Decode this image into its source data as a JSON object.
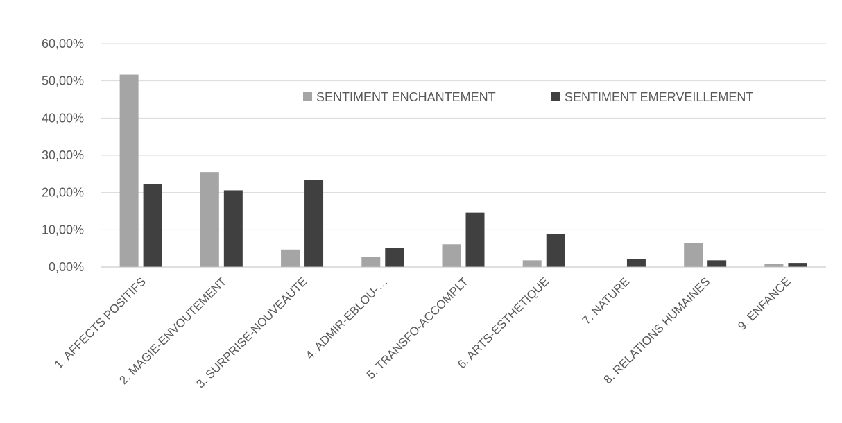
{
  "chart_data": {
    "type": "bar",
    "title": "",
    "xlabel": "",
    "ylabel": "",
    "categories": [
      "1. AFFECTS POSITIFS",
      "2. MAGIE-ENVOUTEMENT",
      "3. SURPRISE-NOUVEAUTE",
      "4. ADMIR-EBLOU-…",
      "5. TRANSFO-ACCOMPLT",
      "6. ARTS-ESTHETIQUE",
      "7. NATURE",
      "8. RELATIONS HUMAINES",
      "9. ENFANCE"
    ],
    "series": [
      {
        "name": "SENTIMENT ENCHANTEMENT",
        "color": "#a5a5a5",
        "values": [
          51.7,
          25.5,
          4.7,
          2.7,
          6.1,
          1.8,
          0.0,
          6.5,
          0.9
        ]
      },
      {
        "name": "SENTIMENT EMERVEILLEMENT",
        "color": "#404040",
        "values": [
          22.2,
          20.6,
          23.3,
          5.2,
          14.6,
          8.9,
          2.2,
          1.8,
          1.1
        ]
      }
    ],
    "ylim": [
      0,
      60
    ],
    "yticks": [
      "0,00%",
      "10,00%",
      "20,00%",
      "30,00%",
      "40,00%",
      "50,00%",
      "60,00%"
    ],
    "ytick_values": [
      0,
      10,
      20,
      30,
      40,
      50,
      60
    ],
    "grid": true,
    "gridline_color": "#d9d9d9",
    "legend_position": "top-right"
  }
}
